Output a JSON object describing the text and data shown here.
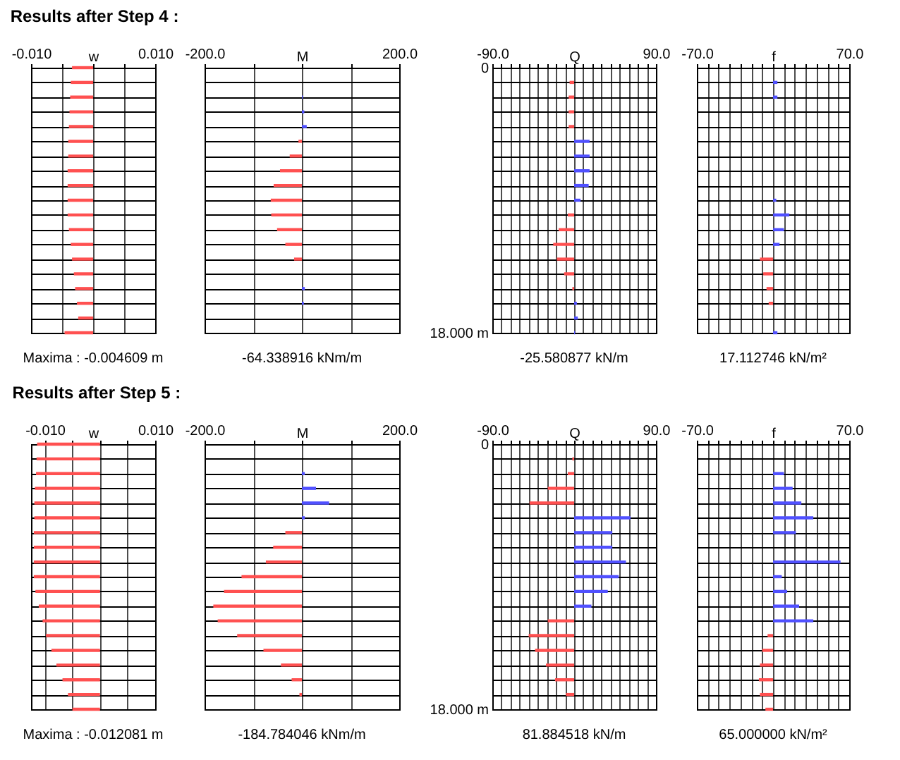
{
  "chart_data": [
    {
      "type": "bar",
      "orientation": "horizontal",
      "title": "Results after Step 4 :",
      "xlabel": "w",
      "categories": [
        null,
        null,
        null,
        null,
        null,
        null,
        null,
        null,
        null,
        null,
        null,
        null,
        null,
        null,
        null,
        null,
        null,
        null,
        null
      ],
      "values": [
        -0.0034,
        -0.0036,
        -0.0037,
        -0.0038,
        -0.0039,
        -0.004,
        -0.004,
        -0.0041,
        -0.0041,
        -0.0041,
        -0.0041,
        -0.0039,
        -0.0036,
        -0.0034,
        -0.0031,
        -0.0029,
        -0.0026,
        -0.0024,
        -0.0046
      ],
      "colors": [
        "#ff5050",
        "#ff5050",
        "#ff5050",
        "#ff5050",
        "#ff5050",
        "#ff5050",
        "#ff5050",
        "#ff5050",
        "#ff5050",
        "#ff5050",
        "#ff5050",
        "#ff5050",
        "#ff5050",
        "#ff5050",
        "#ff5050",
        "#ff5050",
        "#ff5050",
        "#ff5050",
        "#ff5050"
      ],
      "xlim": [
        -0.01,
        0.01
      ],
      "xticks": [
        {
          "value": -0.01,
          "label": "-0.010"
        },
        {
          "value": -0.005,
          "label": null
        },
        {
          "value": 0,
          "label": null
        },
        {
          "value": 0.005,
          "label": null
        },
        {
          "value": 0.01,
          "label": "0.010"
        }
      ],
      "grid": true,
      "annotations": [
        "Maxima :",
        "-0.004609 m"
      ]
    },
    {
      "type": "bar",
      "orientation": "horizontal",
      "xlabel": "M",
      "categories": [
        null,
        null,
        null,
        null,
        null,
        null,
        null,
        null,
        null,
        null,
        null,
        null,
        null,
        null,
        null,
        null,
        null,
        null,
        null
      ],
      "values": [
        0,
        0,
        2,
        5,
        10,
        -7,
        -25,
        -45,
        -58,
        -64,
        -63,
        -51,
        -34,
        -16,
        0,
        6,
        4,
        0,
        0
      ],
      "colors": [
        "#5050ff",
        "#5050ff",
        "#5050ff",
        "#5050ff",
        "#5050ff",
        "#ff5050",
        "#ff5050",
        "#ff5050",
        "#ff5050",
        "#ff5050",
        "#ff5050",
        "#ff5050",
        "#ff5050",
        "#ff5050",
        "#5050ff",
        "#5050ff",
        "#5050ff",
        "#5050ff",
        "#5050ff"
      ],
      "xlim": [
        -200,
        200
      ],
      "xticks": [
        {
          "value": -200,
          "label": "-200.0"
        },
        {
          "value": -100,
          "label": null
        },
        {
          "value": 0,
          "label": null
        },
        {
          "value": 100,
          "label": null
        },
        {
          "value": 200,
          "label": "200.0"
        }
      ],
      "grid": true,
      "annotations": [
        "-64.338916 kNm/m"
      ]
    },
    {
      "type": "bar",
      "orientation": "horizontal",
      "xlabel": "Q",
      "categories": [
        "0",
        null,
        null,
        null,
        null,
        null,
        null,
        null,
        null,
        null,
        null,
        null,
        null,
        null,
        null,
        null,
        null,
        null,
        "18.000 m"
      ],
      "values": [
        0,
        -5,
        -6,
        -6,
        -6,
        17,
        17,
        17,
        16,
        7,
        -7,
        -17,
        -23,
        -19,
        -11,
        -2,
        3,
        4,
        1
      ],
      "colors": [
        "#ff5050",
        "#ff5050",
        "#ff5050",
        "#ff5050",
        "#ff5050",
        "#5050ff",
        "#5050ff",
        "#5050ff",
        "#5050ff",
        "#5050ff",
        "#ff5050",
        "#ff5050",
        "#ff5050",
        "#ff5050",
        "#ff5050",
        "#ff5050",
        "#5050ff",
        "#5050ff",
        "#5050ff"
      ],
      "xlim": [
        -90,
        90
      ],
      "xticks": [
        {
          "value": -90,
          "label": "-90.0"
        },
        {
          "value": -80,
          "label": null
        },
        {
          "value": -70,
          "label": null
        },
        {
          "value": -60,
          "label": null
        },
        {
          "value": -50,
          "label": null
        },
        {
          "value": -40,
          "label": null
        },
        {
          "value": -30,
          "label": null
        },
        {
          "value": -20,
          "label": null
        },
        {
          "value": -10,
          "label": null
        },
        {
          "value": 0,
          "label": null
        },
        {
          "value": 10,
          "label": null
        },
        {
          "value": 20,
          "label": null
        },
        {
          "value": 30,
          "label": null
        },
        {
          "value": 40,
          "label": null
        },
        {
          "value": 50,
          "label": null
        },
        {
          "value": 60,
          "label": null
        },
        {
          "value": 70,
          "label": null
        },
        {
          "value": 80,
          "label": null
        },
        {
          "value": 90,
          "label": "90.0"
        }
      ],
      "grid": true,
      "annotations": [
        "-25.580877 kN/m"
      ]
    },
    {
      "type": "bar",
      "orientation": "horizontal",
      "xlabel": "f",
      "categories": [
        null,
        null,
        null,
        null,
        null,
        null,
        null,
        null,
        null,
        null,
        null,
        null,
        null,
        null,
        null,
        null,
        null,
        null,
        null
      ],
      "values": [
        0,
        4,
        4,
        0,
        0,
        0,
        0,
        0,
        0,
        3,
        15,
        10,
        6,
        -12,
        -9,
        -6,
        -4,
        0,
        4
      ],
      "colors": [
        "#5050ff",
        "#5050ff",
        "#5050ff",
        "#5050ff",
        "#5050ff",
        "#5050ff",
        "#5050ff",
        "#5050ff",
        "#5050ff",
        "#5050ff",
        "#5050ff",
        "#5050ff",
        "#5050ff",
        "#ff5050",
        "#ff5050",
        "#ff5050",
        "#ff5050",
        "#ff5050",
        "#5050ff"
      ],
      "xlim": [
        -70,
        70
      ],
      "xticks": [
        {
          "value": -70,
          "label": "-70.0"
        },
        {
          "value": -60,
          "label": null
        },
        {
          "value": -50,
          "label": null
        },
        {
          "value": -40,
          "label": null
        },
        {
          "value": -30,
          "label": null
        },
        {
          "value": -20,
          "label": null
        },
        {
          "value": -10,
          "label": null
        },
        {
          "value": 0,
          "label": null
        },
        {
          "value": 10,
          "label": null
        },
        {
          "value": 20,
          "label": null
        },
        {
          "value": 30,
          "label": null
        },
        {
          "value": 40,
          "label": null
        },
        {
          "value": 50,
          "label": null
        },
        {
          "value": 60,
          "label": null
        },
        {
          "value": 70,
          "label": "70.0"
        }
      ],
      "grid": true,
      "annotations": [
        "17.112746 kN/m²"
      ]
    },
    {
      "type": "bar",
      "orientation": "horizontal",
      "title": "Results after Step 5 :",
      "xlabel": "w",
      "categories": [
        null,
        null,
        null,
        null,
        null,
        null,
        null,
        null,
        null,
        null,
        null,
        null,
        null,
        null,
        null,
        null,
        null,
        null,
        null
      ],
      "values": [
        -0.0114,
        -0.0115,
        -0.0116,
        -0.0118,
        -0.0119,
        -0.0119,
        -0.012,
        -0.012,
        -0.012,
        -0.012,
        -0.0117,
        -0.0111,
        -0.0104,
        -0.0098,
        -0.0088,
        -0.0079,
        -0.0068,
        -0.0058,
        -0.005
      ],
      "colors": [
        "#ff5050",
        "#ff5050",
        "#ff5050",
        "#ff5050",
        "#ff5050",
        "#ff5050",
        "#ff5050",
        "#ff5050",
        "#ff5050",
        "#ff5050",
        "#ff5050",
        "#ff5050",
        "#ff5050",
        "#ff5050",
        "#ff5050",
        "#ff5050",
        "#ff5050",
        "#ff5050",
        "#ff5050"
      ],
      "xlim": [
        -0.0125,
        0.01
      ],
      "xticks": [
        {
          "value": -0.01,
          "label": "-0.010"
        },
        {
          "value": -0.005,
          "label": null
        },
        {
          "value": 0,
          "label": null
        },
        {
          "value": 0.005,
          "label": null
        },
        {
          "value": 0.01,
          "label": "0.010"
        }
      ],
      "grid": true,
      "annotations": [
        "Maxima :",
        "-0.012081 m"
      ]
    },
    {
      "type": "bar",
      "orientation": "horizontal",
      "xlabel": "M",
      "categories": [
        null,
        null,
        null,
        null,
        null,
        null,
        null,
        null,
        null,
        null,
        null,
        null,
        null,
        null,
        null,
        null,
        null,
        null,
        null
      ],
      "values": [
        0,
        0,
        6,
        29,
        56,
        6,
        -34,
        -59,
        -74,
        -124,
        -160,
        -182,
        -173,
        -133,
        -79,
        -43,
        -21,
        -5,
        0
      ],
      "colors": [
        "#5050ff",
        "#5050ff",
        "#5050ff",
        "#5050ff",
        "#5050ff",
        "#5050ff",
        "#ff5050",
        "#ff5050",
        "#ff5050",
        "#ff5050",
        "#ff5050",
        "#ff5050",
        "#ff5050",
        "#ff5050",
        "#ff5050",
        "#ff5050",
        "#ff5050",
        "#ff5050",
        "#5050ff"
      ],
      "xlim": [
        -200,
        200
      ],
      "xticks": [
        {
          "value": -200,
          "label": "-200.0"
        },
        {
          "value": -100,
          "label": null
        },
        {
          "value": 0,
          "label": null
        },
        {
          "value": 100,
          "label": null
        },
        {
          "value": 200,
          "label": "200.0"
        }
      ],
      "grid": true,
      "annotations": [
        "-184.784046 kNm/m"
      ]
    },
    {
      "type": "bar",
      "orientation": "horizontal",
      "xlabel": "Q",
      "categories": [
        "0",
        null,
        null,
        null,
        null,
        null,
        null,
        null,
        null,
        null,
        null,
        null,
        null,
        null,
        null,
        null,
        null,
        null,
        "18.000 m"
      ],
      "values": [
        0,
        -2,
        -7,
        -29,
        -49,
        62,
        42,
        42,
        57,
        49,
        37,
        19,
        -29,
        -50,
        -43,
        -31,
        -21,
        -9,
        0
      ],
      "colors": [
        "#5050ff",
        "#ff5050",
        "#ff5050",
        "#ff5050",
        "#ff5050",
        "#5050ff",
        "#5050ff",
        "#5050ff",
        "#5050ff",
        "#5050ff",
        "#5050ff",
        "#5050ff",
        "#ff5050",
        "#ff5050",
        "#ff5050",
        "#ff5050",
        "#ff5050",
        "#ff5050",
        "#5050ff"
      ],
      "xlim": [
        -90,
        90
      ],
      "xticks": [
        {
          "value": -90,
          "label": "-90.0"
        },
        {
          "value": -80,
          "label": null
        },
        {
          "value": -70,
          "label": null
        },
        {
          "value": -60,
          "label": null
        },
        {
          "value": -50,
          "label": null
        },
        {
          "value": -40,
          "label": null
        },
        {
          "value": -30,
          "label": null
        },
        {
          "value": -20,
          "label": null
        },
        {
          "value": -10,
          "label": null
        },
        {
          "value": 0,
          "label": null
        },
        {
          "value": 10,
          "label": null
        },
        {
          "value": 20,
          "label": null
        },
        {
          "value": 30,
          "label": null
        },
        {
          "value": 40,
          "label": null
        },
        {
          "value": 50,
          "label": null
        },
        {
          "value": 60,
          "label": null
        },
        {
          "value": 70,
          "label": null
        },
        {
          "value": 80,
          "label": null
        },
        {
          "value": 90,
          "label": "90.0"
        }
      ],
      "grid": true,
      "annotations": [
        "81.884518 kN/m"
      ]
    },
    {
      "type": "bar",
      "orientation": "horizontal",
      "xlabel": "f",
      "categories": [
        null,
        null,
        null,
        null,
        null,
        null,
        null,
        null,
        null,
        null,
        null,
        null,
        null,
        null,
        null,
        null,
        null,
        null,
        null
      ],
      "values": [
        0,
        0,
        10,
        18,
        26,
        37,
        21,
        0,
        62,
        8,
        13,
        24,
        37,
        -5,
        -10,
        -12,
        -13,
        -12,
        -7
      ],
      "colors": [
        "#5050ff",
        "#5050ff",
        "#5050ff",
        "#5050ff",
        "#5050ff",
        "#5050ff",
        "#5050ff",
        "#5050ff",
        "#5050ff",
        "#5050ff",
        "#5050ff",
        "#5050ff",
        "#5050ff",
        "#ff5050",
        "#ff5050",
        "#ff5050",
        "#ff5050",
        "#ff5050",
        "#ff5050"
      ],
      "xlim": [
        -70,
        70
      ],
      "xticks": [
        {
          "value": -70,
          "label": "-70.0"
        },
        {
          "value": -60,
          "label": null
        },
        {
          "value": -50,
          "label": null
        },
        {
          "value": -40,
          "label": null
        },
        {
          "value": -30,
          "label": null
        },
        {
          "value": -20,
          "label": null
        },
        {
          "value": -10,
          "label": null
        },
        {
          "value": 0,
          "label": null
        },
        {
          "value": 10,
          "label": null
        },
        {
          "value": 20,
          "label": null
        },
        {
          "value": 30,
          "label": null
        },
        {
          "value": 40,
          "label": null
        },
        {
          "value": 50,
          "label": null
        },
        {
          "value": 60,
          "label": null
        },
        {
          "value": 70,
          "label": "70.0"
        }
      ],
      "grid": true,
      "annotations": [
        "65.000000 kN/m²"
      ]
    }
  ]
}
